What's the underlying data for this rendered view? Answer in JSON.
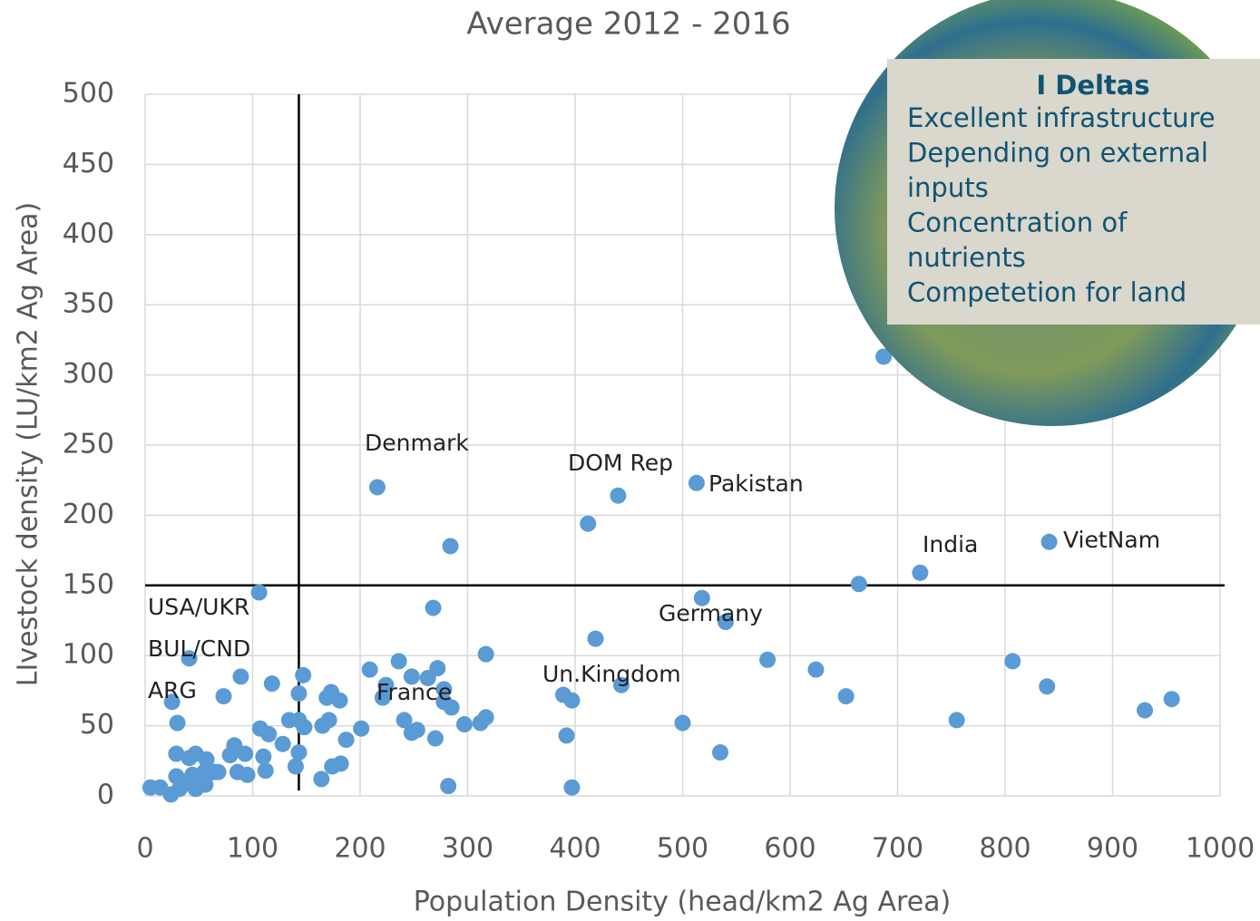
{
  "chart_data": {
    "type": "scatter",
    "title": "Average 2012 - 2016",
    "x_label": "Population Density (head/km2 Ag Area)",
    "y_label": "LIvestock density (LU/km2 Ag Area)",
    "x": [
      216,
      284,
      412,
      440,
      513,
      841,
      721,
      664,
      687,
      106,
      268,
      518,
      540,
      41,
      317,
      419,
      579,
      624,
      652,
      807,
      839,
      930,
      955,
      755,
      500,
      535,
      397,
      392,
      397,
      443,
      389,
      282,
      297,
      317,
      312,
      236,
      209,
      224,
      248,
      263,
      272,
      278,
      285,
      278,
      221,
      241,
      248,
      253,
      270,
      201,
      187,
      182,
      174,
      164,
      165,
      171,
      169,
      173,
      181,
      147,
      143,
      143,
      148,
      134,
      128,
      143,
      140,
      118,
      115,
      107,
      110,
      112,
      93,
      89,
      83,
      79,
      86,
      95,
      73,
      25,
      30,
      29,
      29,
      41,
      47,
      57,
      64,
      56,
      47,
      37,
      32,
      24,
      14,
      5,
      44,
      55,
      68
    ],
    "values": [
      220,
      178,
      194,
      214,
      223,
      181,
      159,
      151,
      313,
      145,
      134,
      141,
      124,
      98,
      101,
      112,
      97,
      90,
      71,
      96,
      78,
      61,
      69,
      54,
      52,
      31,
      68,
      43,
      6,
      79,
      72,
      7,
      51,
      56,
      52,
      96,
      90,
      79,
      85,
      84,
      91,
      76,
      63,
      67,
      70,
      54,
      45,
      47,
      41,
      48,
      40,
      23,
      21,
      12,
      50,
      54,
      70,
      74,
      68,
      86,
      73,
      54,
      49,
      54,
      37,
      31,
      21,
      80,
      44,
      48,
      28,
      18,
      30,
      85,
      36,
      29,
      17,
      15,
      71,
      67,
      52,
      30,
      14,
      27,
      30,
      26,
      17,
      8,
      5,
      9,
      5,
      1,
      6,
      6,
      15,
      17,
      17
    ],
    "color": "#5b9bd5",
    "xlim": [
      0,
      1000
    ],
    "ylim": [
      0,
      500
    ],
    "xticks": [
      0,
      100,
      200,
      300,
      400,
      500,
      600,
      700,
      800,
      900,
      1000
    ],
    "yticks": [
      0,
      50,
      100,
      150,
      200,
      250,
      300,
      350,
      400,
      450,
      500
    ],
    "grid": true,
    "vlines": [
      143
    ],
    "hlines": [
      150
    ],
    "annotations": [
      "Denmark",
      "DOM Rep",
      "Pakistan",
      "India",
      "VietNam",
      "Germany",
      "Un.Kingdom",
      "France",
      "USA/UKR",
      "BUL/CND",
      "ARG"
    ]
  },
  "overlay": {
    "title": "I Deltas",
    "lines": [
      "Excellent infrastructure",
      "Depending on external",
      "inputs",
      "Concentration of",
      "nutrients",
      "Competetion for land"
    ]
  }
}
